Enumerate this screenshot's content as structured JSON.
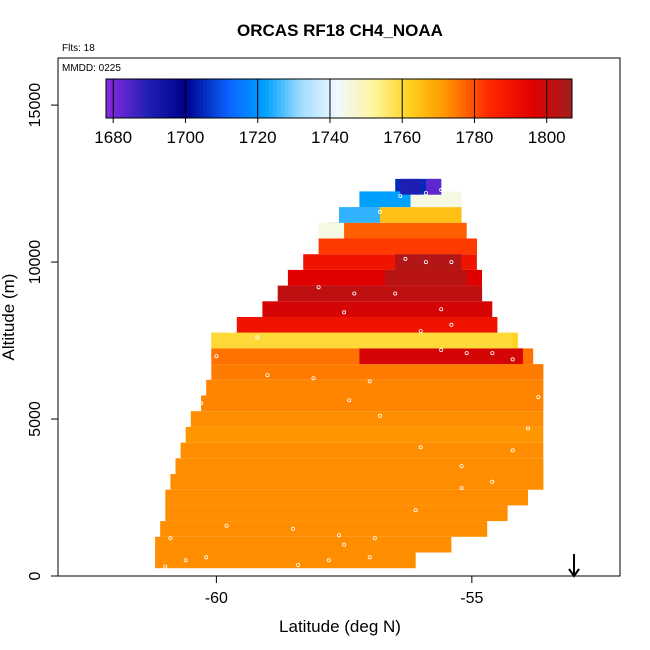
{
  "chart_data": {
    "type": "heatmap",
    "title": "ORCAS RF18 CH4_NOAA",
    "notes": [
      "Flts: 18",
      "MMDD: 0225"
    ],
    "xlabel": "Latitude (deg N)",
    "ylabel": "Altitude (m)",
    "xlim": [
      -63.1,
      -52.1
    ],
    "ylim": [
      0,
      16500
    ],
    "xticks": [
      -60,
      -55
    ],
    "xtick_labels": [
      "-60",
      "-55"
    ],
    "yticks": [
      0,
      5000,
      10000,
      15000
    ],
    "ytick_labels": [
      "0",
      "5000",
      "10000",
      "15000"
    ],
    "colorbar": {
      "min": 1678,
      "max": 1807,
      "ticks": [
        1680,
        1700,
        1720,
        1740,
        1760,
        1780,
        1800
      ],
      "tick_labels": [
        "1680",
        "1700",
        "1720",
        "1740",
        "1760",
        "1780",
        "1800"
      ],
      "stops": [
        {
          "v": 1678,
          "c": "#8a2be2"
        },
        {
          "v": 1690,
          "c": "#1e1eb4"
        },
        {
          "v": 1700,
          "c": "#00008c"
        },
        {
          "v": 1712,
          "c": "#0a64ff"
        },
        {
          "v": 1722,
          "c": "#00a0ff"
        },
        {
          "v": 1732,
          "c": "#a0dcff"
        },
        {
          "v": 1742,
          "c": "#f0faff"
        },
        {
          "v": 1752,
          "c": "#fff5a0"
        },
        {
          "v": 1762,
          "c": "#ffd21e"
        },
        {
          "v": 1772,
          "c": "#ff9600"
        },
        {
          "v": 1784,
          "c": "#ff2800"
        },
        {
          "v": 1796,
          "c": "#e10000"
        },
        {
          "v": 1807,
          "c": "#a01e1e"
        }
      ]
    },
    "background_value": 1773,
    "altitude_bins": [
      {
        "alt": 500,
        "lat_min": -61.2,
        "lat_max": -56.1,
        "value": 1773
      },
      {
        "alt": 1000,
        "lat_min": -61.2,
        "lat_max": -55.4,
        "value": 1773
      },
      {
        "alt": 1500,
        "lat_min": -61.1,
        "lat_max": -54.7,
        "value": 1773
      },
      {
        "alt": 2000,
        "lat_min": -61.0,
        "lat_max": -54.3,
        "value": 1773
      },
      {
        "alt": 2500,
        "lat_min": -61.0,
        "lat_max": -53.9,
        "value": 1773
      },
      {
        "alt": 3000,
        "lat_min": -60.9,
        "lat_max": -53.6,
        "value": 1773
      },
      {
        "alt": 3500,
        "lat_min": -60.8,
        "lat_max": -53.6,
        "value": 1773
      },
      {
        "alt": 4000,
        "lat_min": -60.7,
        "lat_max": -53.6,
        "value": 1773
      },
      {
        "alt": 4500,
        "lat_min": -60.6,
        "lat_max": -53.6,
        "value": 1772
      },
      {
        "alt": 5000,
        "lat_min": -60.5,
        "lat_max": -53.6,
        "value": 1773
      },
      {
        "alt": 5500,
        "lat_min": -60.3,
        "lat_max": -53.6,
        "value": 1774
      },
      {
        "alt": 6000,
        "lat_min": -60.2,
        "lat_max": -53.6,
        "value": 1774
      },
      {
        "alt": 6500,
        "lat_min": -60.1,
        "lat_max": -53.6,
        "value": 1775
      },
      {
        "alt": 7000,
        "lat_min": -60.1,
        "lat_max": -53.8,
        "value": 1776
      },
      {
        "alt": 7500,
        "lat_min": -60.1,
        "lat_max": -54.1,
        "value": 1762
      },
      {
        "alt": 8000,
        "lat_min": -59.6,
        "lat_max": -54.5,
        "value": 1790
      },
      {
        "alt": 8500,
        "lat_min": -59.1,
        "lat_max": -54.6,
        "value": 1798
      },
      {
        "alt": 9000,
        "lat_min": -58.8,
        "lat_max": -54.8,
        "value": 1802
      },
      {
        "alt": 9500,
        "lat_min": -58.6,
        "lat_max": -54.8,
        "value": 1796
      },
      {
        "alt": 10000,
        "lat_min": -58.3,
        "lat_max": -54.9,
        "value": 1790
      },
      {
        "alt": 10500,
        "lat_min": -58.0,
        "lat_max": -54.9,
        "value": 1782
      },
      {
        "alt": 11000,
        "lat_min": -57.8,
        "lat_max": -55.1,
        "value": 1778
      },
      {
        "alt": 11500,
        "lat_min": -57.4,
        "lat_max": -55.2,
        "value": 1765
      },
      {
        "alt": 12000,
        "lat_min": -56.9,
        "lat_max": -55.2,
        "value": 1745
      },
      {
        "alt": 12400,
        "lat_min": -56.5,
        "lat_max": -55.6,
        "value": 1705
      }
    ],
    "anomalies": [
      {
        "alt": 7000,
        "lat_min": -57.2,
        "lat_max": -54.0,
        "value": 1798
      },
      {
        "alt": 7500,
        "lat_min": -60.1,
        "lat_max": -54.2,
        "value": 1760
      },
      {
        "alt": 9500,
        "lat_min": -56.7,
        "lat_max": -55.1,
        "value": 1803
      },
      {
        "alt": 10000,
        "lat_min": -56.5,
        "lat_max": -55.2,
        "value": 1804
      },
      {
        "alt": 11000,
        "lat_min": -58.0,
        "lat_max": -57.5,
        "value": 1745
      },
      {
        "alt": 11500,
        "lat_min": -57.6,
        "lat_max": -56.8,
        "value": 1725
      },
      {
        "alt": 12000,
        "lat_min": -57.2,
        "lat_max": -56.2,
        "value": 1722
      },
      {
        "alt": 12400,
        "lat_min": -56.4,
        "lat_max": -56.0,
        "value": 1690
      },
      {
        "alt": 12400,
        "lat_min": -55.9,
        "lat_max": -55.6,
        "value": 1683
      }
    ],
    "flight_track": [
      [
        -61.3,
        300
      ],
      [
        -61.0,
        300
      ],
      [
        -60.6,
        500
      ],
      [
        -60.2,
        600
      ],
      [
        -59.5,
        100
      ],
      [
        -59.0,
        150
      ],
      [
        -58.4,
        350
      ],
      [
        -58.0,
        100
      ],
      [
        -57.5,
        1000
      ],
      [
        -57.0,
        600
      ],
      [
        -56.5,
        150
      ],
      [
        -56.1,
        2100
      ],
      [
        -55.2,
        2800
      ],
      [
        -55.2,
        3500
      ],
      [
        -54.6,
        3000
      ],
      [
        -54.2,
        4000
      ],
      [
        -53.9,
        4700
      ],
      [
        -53.7,
        5700
      ],
      [
        -54.2,
        6900
      ],
      [
        -54.6,
        7100
      ],
      [
        -55.1,
        7100
      ],
      [
        -55.6,
        7200
      ],
      [
        -56.0,
        7800
      ],
      [
        -55.4,
        8000
      ],
      [
        -55.6,
        8500
      ],
      [
        -56.5,
        9000
      ],
      [
        -57.3,
        9000
      ],
      [
        -58.0,
        9200
      ],
      [
        -55.4,
        10000
      ],
      [
        -55.9,
        10000
      ],
      [
        -56.3,
        10100
      ],
      [
        -56.8,
        11600
      ],
      [
        -56.4,
        12100
      ],
      [
        -55.9,
        12200
      ],
      [
        -55.6,
        12300
      ],
      [
        -57.5,
        8400
      ],
      [
        -59.2,
        7600
      ],
      [
        -59.7,
        7800
      ],
      [
        -60.0,
        7000
      ],
      [
        -60.4,
        6000
      ],
      [
        -60.7,
        5000
      ],
      [
        -61.0,
        4500
      ],
      [
        -61.2,
        3200
      ],
      [
        -61.4,
        2000
      ],
      [
        -61.5,
        1000
      ],
      [
        -59.8,
        1600
      ],
      [
        -60.9,
        1200
      ],
      [
        -58.5,
        1500
      ],
      [
        -57.8,
        500
      ],
      [
        -57.6,
        1300
      ],
      [
        -56.9,
        1200
      ],
      [
        -60.3,
        5500
      ],
      [
        -59.0,
        6400
      ],
      [
        -58.1,
        6300
      ],
      [
        -57.0,
        6200
      ],
      [
        -57.4,
        5600
      ],
      [
        -56.8,
        5100
      ],
      [
        -56.0,
        4100
      ]
    ],
    "arrow": {
      "lat": -53.0,
      "alt_from": 700,
      "alt_to": 0
    }
  }
}
